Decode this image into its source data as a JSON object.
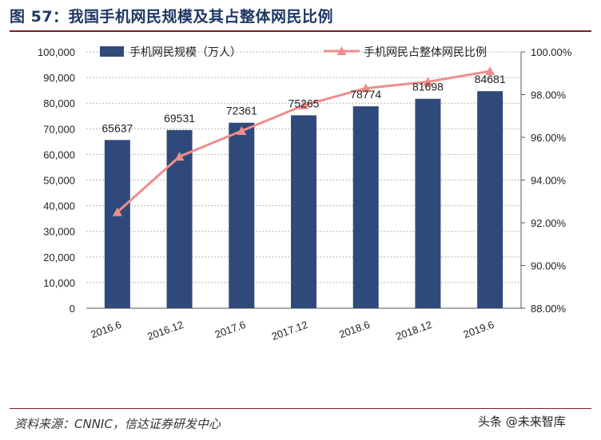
{
  "figure": {
    "title": "图 57：我国手机网民规模及其占整体网民比例",
    "source": "资料来源：CNNIC，信达证券研发中心",
    "watermark": "头条 @未来智库"
  },
  "colors": {
    "bar": "#2f4a7a",
    "line": "#f08c8c",
    "title": "#1f3864",
    "rule": "#7b1f2a"
  },
  "chart_data": {
    "type": "bar",
    "categories": [
      "2016.6",
      "2016.12",
      "2017.6",
      "2017.12",
      "2018.6",
      "2018.12",
      "2019.6"
    ],
    "series": [
      {
        "name": "手机网民规模（万人）",
        "type": "bar",
        "axis": "left",
        "values": [
          65637,
          69531,
          72361,
          75265,
          78774,
          81698,
          84681
        ],
        "labels": [
          "65637",
          "69531",
          "72361",
          "75265",
          "78774",
          "81698",
          "84681"
        ]
      },
      {
        "name": "手机网民占整体网民比例",
        "type": "line",
        "axis": "right",
        "values": [
          92.5,
          95.1,
          96.3,
          97.5,
          98.3,
          98.6,
          99.1
        ]
      }
    ],
    "ylim_left": [
      0,
      100000
    ],
    "ylim_right": [
      88,
      100
    ],
    "left_ticks": [
      "0",
      "10,000",
      "20,000",
      "30,000",
      "40,000",
      "50,000",
      "60,000",
      "70,000",
      "80,000",
      "90,000",
      "100,000"
    ],
    "right_ticks": [
      "88.00%",
      "90.00%",
      "92.00%",
      "94.00%",
      "96.00%",
      "98.00%",
      "100.00%"
    ],
    "grid": true,
    "legend": "top"
  }
}
